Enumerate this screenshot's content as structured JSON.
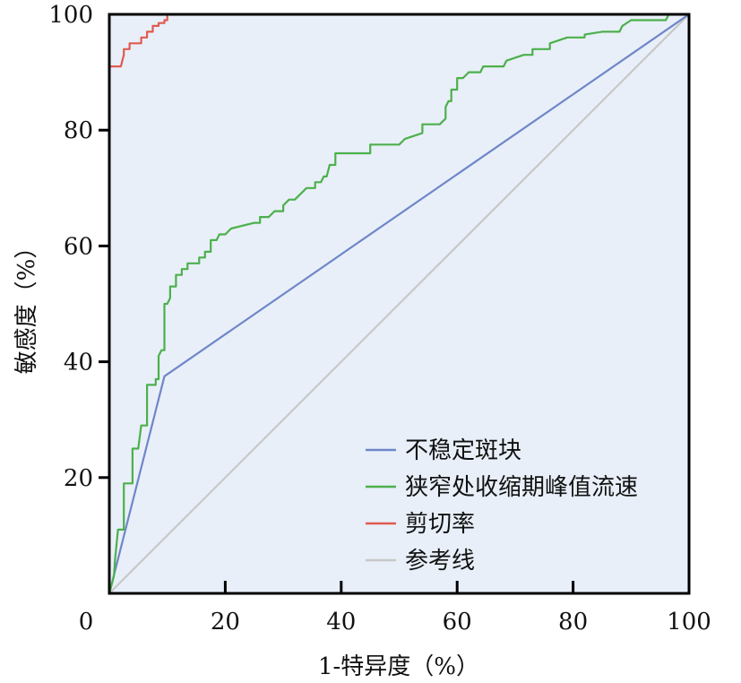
{
  "chart_data": {
    "type": "line",
    "xlabel": "1-特异度（%）",
    "ylabel": "敏感度（%）",
    "xlim": [
      0,
      100
    ],
    "ylim": [
      0,
      100
    ],
    "x_ticks": [
      "0",
      "20",
      "40",
      "60",
      "80",
      "100"
    ],
    "y_ticks": [
      "20",
      "40",
      "60",
      "80",
      "100"
    ],
    "grid": false,
    "legend_position": "bottom-right",
    "background": "#e8eff8",
    "series": [
      {
        "name": "不稳定斑块",
        "color": "#6f86c9",
        "points": [
          [
            0,
            0
          ],
          [
            9.5,
            37.5
          ],
          [
            100,
            100
          ]
        ]
      },
      {
        "name": "狭窄处收缩期峰值流速",
        "color": "#4cb04c",
        "points": [
          [
            0,
            0
          ],
          [
            0.8,
            3
          ],
          [
            1,
            6
          ],
          [
            1.5,
            11
          ],
          [
            2.5,
            11
          ],
          [
            2.5,
            19
          ],
          [
            3,
            19
          ],
          [
            4,
            19
          ],
          [
            4,
            25
          ],
          [
            5,
            25
          ],
          [
            5.5,
            29
          ],
          [
            6,
            29
          ],
          [
            6.5,
            29
          ],
          [
            6.5,
            36
          ],
          [
            7,
            36
          ],
          [
            8,
            36
          ],
          [
            8,
            37
          ],
          [
            8.5,
            37
          ],
          [
            8.5,
            41
          ],
          [
            9,
            42
          ],
          [
            9.5,
            42
          ],
          [
            9.5,
            50
          ],
          [
            10,
            50
          ],
          [
            10.5,
            51
          ],
          [
            10.5,
            53
          ],
          [
            11.5,
            53
          ],
          [
            11.5,
            55
          ],
          [
            12.5,
            55
          ],
          [
            12.5,
            56
          ],
          [
            13.5,
            56
          ],
          [
            13.5,
            57
          ],
          [
            15.5,
            57
          ],
          [
            15.5,
            58
          ],
          [
            16.5,
            58
          ],
          [
            16.5,
            59
          ],
          [
            17.5,
            59
          ],
          [
            17.5,
            61
          ],
          [
            18.5,
            61
          ],
          [
            19,
            62
          ],
          [
            20,
            62
          ],
          [
            21,
            63
          ],
          [
            25,
            64
          ],
          [
            26,
            64
          ],
          [
            26,
            65
          ],
          [
            27.5,
            65
          ],
          [
            28.5,
            66
          ],
          [
            30,
            66
          ],
          [
            30,
            67
          ],
          [
            31,
            68
          ],
          [
            32,
            68
          ],
          [
            33,
            69
          ],
          [
            34,
            70
          ],
          [
            35.5,
            70
          ],
          [
            35.5,
            71
          ],
          [
            36.5,
            71
          ],
          [
            37,
            72
          ],
          [
            37.5,
            72
          ],
          [
            38,
            74
          ],
          [
            39,
            74
          ],
          [
            39,
            76
          ],
          [
            45,
            76
          ],
          [
            45,
            77.5
          ],
          [
            50,
            77.5
          ],
          [
            51,
            78.5
          ],
          [
            54,
            79.5
          ],
          [
            54,
            81
          ],
          [
            57,
            81
          ],
          [
            58,
            82
          ],
          [
            58,
            84
          ],
          [
            58.5,
            85
          ],
          [
            59,
            85
          ],
          [
            59,
            87
          ],
          [
            60,
            87
          ],
          [
            60,
            89
          ],
          [
            61,
            89
          ],
          [
            62,
            90
          ],
          [
            64,
            90
          ],
          [
            64.5,
            91
          ],
          [
            68,
            91
          ],
          [
            68.5,
            92
          ],
          [
            71.5,
            93
          ],
          [
            73,
            93
          ],
          [
            73,
            94
          ],
          [
            76,
            94
          ],
          [
            76,
            95
          ],
          [
            77.5,
            95.5
          ],
          [
            79,
            96
          ],
          [
            82,
            96
          ],
          [
            82,
            96.5
          ],
          [
            85,
            97
          ],
          [
            88,
            97
          ],
          [
            88.5,
            98
          ],
          [
            90,
            99
          ],
          [
            93,
            99
          ],
          [
            96,
            99
          ],
          [
            96.5,
            100
          ],
          [
            100,
            100
          ]
        ]
      },
      {
        "name": "剪切率",
        "color": "#e05b50",
        "points": [
          [
            0,
            91
          ],
          [
            2,
            91
          ],
          [
            2.5,
            93
          ],
          [
            2.5,
            94
          ],
          [
            3.5,
            94
          ],
          [
            3.5,
            95
          ],
          [
            5.5,
            95
          ],
          [
            5.5,
            96
          ],
          [
            6.5,
            96
          ],
          [
            6.5,
            97
          ],
          [
            7.5,
            97
          ],
          [
            7.5,
            98
          ],
          [
            8.5,
            98
          ],
          [
            8.5,
            98.5
          ],
          [
            9.5,
            98.5
          ],
          [
            9.5,
            99
          ],
          [
            10,
            99
          ],
          [
            10,
            100
          ],
          [
            50,
            100
          ]
        ]
      },
      {
        "name": "参考线",
        "color": "#c8c8c8",
        "points": [
          [
            0,
            0
          ],
          [
            100,
            100
          ]
        ]
      }
    ]
  }
}
